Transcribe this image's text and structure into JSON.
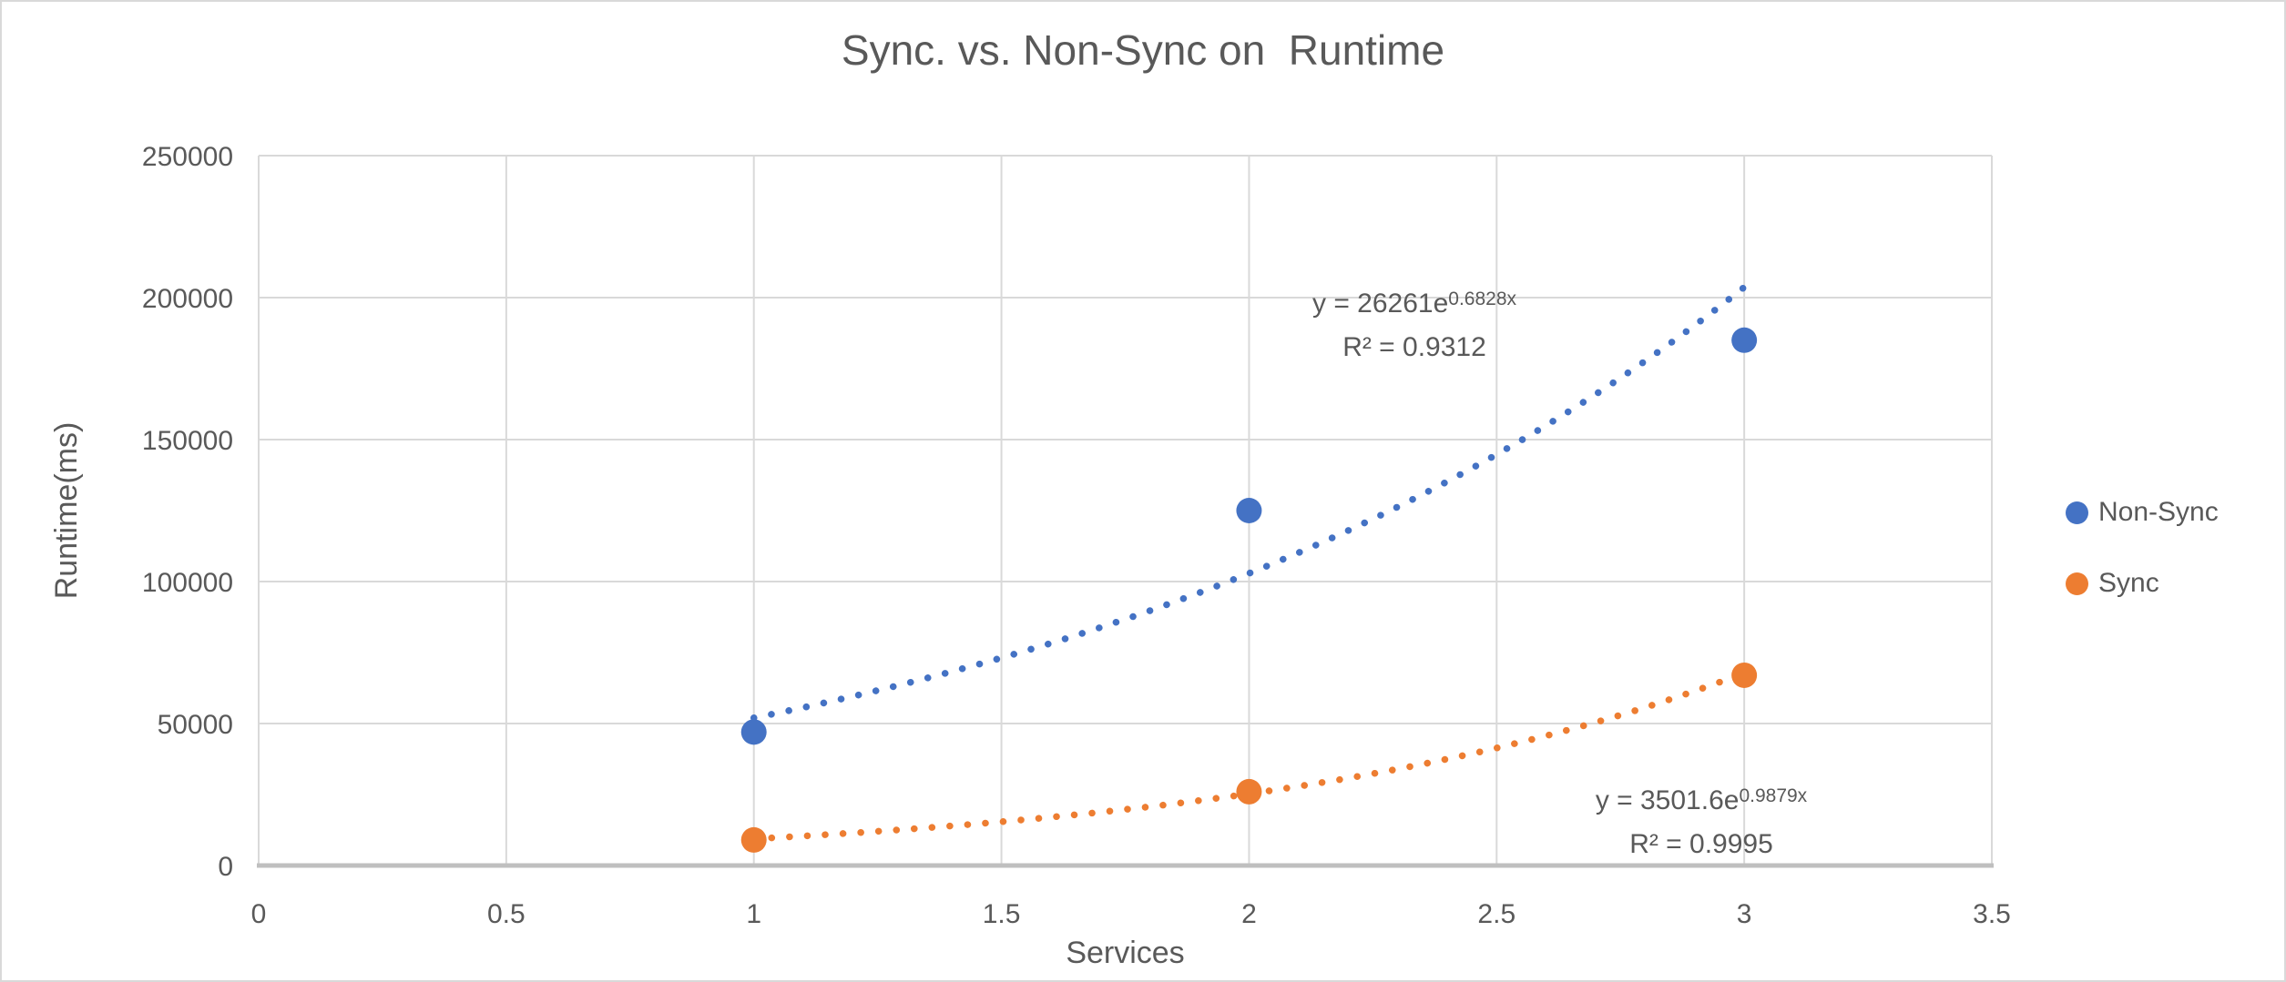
{
  "title": "Sync. vs. Non-Sync on  Runtime",
  "colors": {
    "non_sync": "#4472C4",
    "sync": "#ED7D31",
    "text": "#595959",
    "gridline": "#D9D9D9",
    "axis_line": "#BFBFBF",
    "background": "#FFFFFF",
    "frame_border": "#D9D9D9"
  },
  "legend": {
    "position": "right",
    "items": [
      {
        "label": "Non-Sync",
        "color": "#4472C4"
      },
      {
        "label": "Sync",
        "color": "#ED7D31"
      }
    ]
  },
  "chart_data": {
    "type": "scatter",
    "title": "Sync. vs. Non-Sync on  Runtime",
    "xlabel": "Services",
    "ylabel": "Runtime(ms)",
    "xlim": [
      0,
      3.5
    ],
    "ylim": [
      0,
      250000
    ],
    "x_tick_values": [
      0,
      0.5,
      1,
      1.5,
      2,
      2.5,
      3,
      3.5
    ],
    "x_tick_labels": [
      "0",
      "0.5",
      "1",
      "1.5",
      "2",
      "2.5",
      "3",
      "3.5"
    ],
    "y_tick_values": [
      0,
      50000,
      100000,
      150000,
      200000,
      250000
    ],
    "y_tick_labels": [
      "0",
      "50000",
      "100000",
      "150000",
      "200000",
      "250000"
    ],
    "grid": true,
    "legend_position": "right",
    "series": [
      {
        "name": "Non-Sync",
        "color": "#4472C4",
        "x": [
          1,
          2,
          3
        ],
        "y": [
          47000,
          125000,
          185000
        ],
        "trendline": {
          "type": "exponential",
          "a": 26261,
          "b": 0.6828,
          "x_start": 1,
          "x_end": 3,
          "style": "dotted"
        },
        "equation": {
          "prefix": "y = 26261e",
          "exponent": "0.6828x",
          "r2": "R² = 0.9312"
        }
      },
      {
        "name": "Sync",
        "color": "#ED7D31",
        "x": [
          1,
          2,
          3
        ],
        "y": [
          9000,
          26000,
          67000
        ],
        "trendline": {
          "type": "exponential",
          "a": 3501.6,
          "b": 0.9879,
          "x_start": 1,
          "x_end": 3,
          "style": "dotted"
        },
        "equation": {
          "prefix": "y = 3501.6e",
          "exponent": "0.9879x",
          "r2": "R² = 0.9995"
        }
      }
    ]
  }
}
